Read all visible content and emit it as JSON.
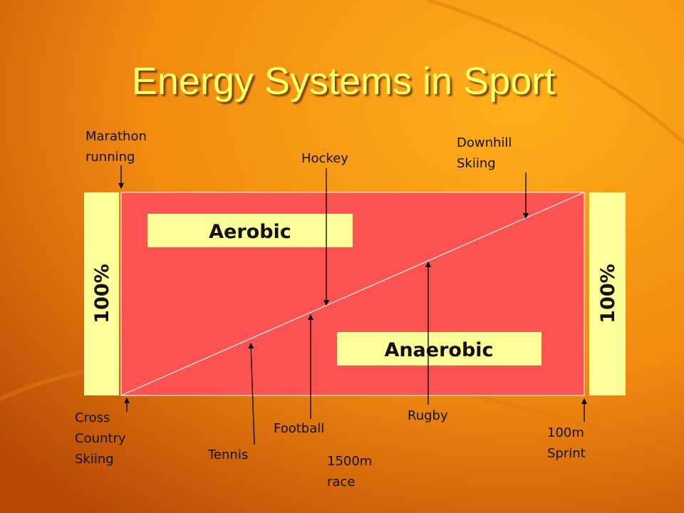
{
  "title": "Energy Systems in Sport",
  "left_bar": "100%",
  "right_bar": "100%",
  "regions": {
    "aerobic": "Aerobic",
    "anaerobic": "Anaerobic"
  },
  "sports": [
    {
      "lines": [
        "Marathon",
        "running"
      ]
    },
    {
      "lines": [
        "Hockey"
      ]
    },
    {
      "lines": [
        "Downhill",
        "Skiing"
      ]
    },
    {
      "lines": [
        "Cross",
        "Country",
        "Skiing"
      ]
    },
    {
      "lines": [
        "Tennis"
      ]
    },
    {
      "lines": [
        "Football"
      ]
    },
    {
      "lines": [
        "1500m",
        "race"
      ]
    },
    {
      "lines": [
        "Rugby"
      ]
    },
    {
      "lines": [
        "100m",
        "Sprint"
      ]
    }
  ]
}
